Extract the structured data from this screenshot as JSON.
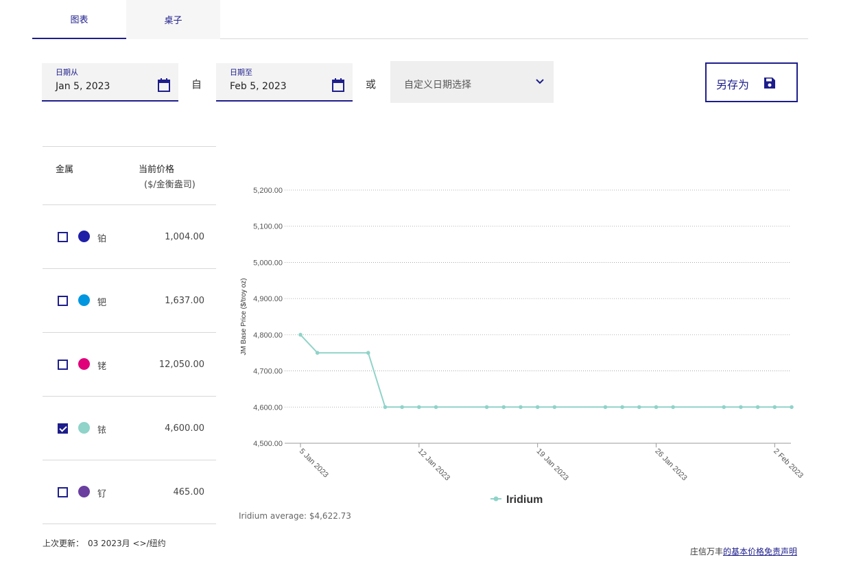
{
  "tabs": [
    {
      "label": "图表",
      "active": true
    },
    {
      "label": "桌子",
      "active": false
    }
  ],
  "date_filter": {
    "from_label": "日期从",
    "from_value": "Jan 5, 2023",
    "connector_to": "自",
    "to_label": "日期至",
    "to_value": "Feb 5, 2023",
    "connector_or": "或",
    "range_select_value": "自定义日期选择"
  },
  "save_button": {
    "label": "另存为",
    "icon": "save-icon"
  },
  "metal_table": {
    "col_metal": "金属",
    "col_price": "当前价格",
    "col_price_unit": "($/金衡盎司)",
    "rows": [
      {
        "name": "铂",
        "price": "1,004.00",
        "color": "#1f1fa8",
        "checked": false
      },
      {
        "name": "钯",
        "price": "1,637.00",
        "color": "#0096e0",
        "checked": false
      },
      {
        "name": "铑",
        "price": "12,050.00",
        "color": "#e0007a",
        "checked": false
      },
      {
        "name": "铱",
        "price": "4,600.00",
        "color": "#8fd3c9",
        "checked": true
      },
      {
        "name": "钌",
        "price": "465.00",
        "color": "#6a3fa0",
        "checked": false
      }
    ]
  },
  "last_updated": {
    "label": "上次更新：",
    "value": "03 2023月 <>/纽约"
  },
  "chart_data": {
    "type": "line",
    "ylabel": "JM Base Price ($/troy oz)",
    "ylim": [
      4500,
      5200
    ],
    "yticks": [
      4500,
      4600,
      4700,
      4800,
      4900,
      5000,
      5100,
      5200
    ],
    "ytick_labels": [
      "4,500.00",
      "4,600.00",
      "4,700.00",
      "4,800.00",
      "4,900.00",
      "5,000.00",
      "5,100.00",
      "5,200.00"
    ],
    "xlim": [
      "2023-01-05",
      "2023-02-03"
    ],
    "xtick_labels": [
      "5 Jan 2023",
      "12 Jan 2023",
      "19 Jan 2023",
      "26 Jan 2023",
      "2 Feb 2023"
    ],
    "xtick_dates": [
      "2023-01-05",
      "2023-01-12",
      "2023-01-19",
      "2023-01-26",
      "2023-02-02"
    ],
    "grid": true,
    "legend": "bottom",
    "series": [
      {
        "name": "Iridium",
        "color": "#8fd3c9",
        "points": [
          {
            "x": "2023-01-05",
            "y": 4800
          },
          {
            "x": "2023-01-06",
            "y": 4750
          },
          {
            "x": "2023-01-09",
            "y": 4750
          },
          {
            "x": "2023-01-10",
            "y": 4600
          },
          {
            "x": "2023-01-11",
            "y": 4600
          },
          {
            "x": "2023-01-12",
            "y": 4600
          },
          {
            "x": "2023-01-13",
            "y": 4600
          },
          {
            "x": "2023-01-16",
            "y": 4600
          },
          {
            "x": "2023-01-17",
            "y": 4600
          },
          {
            "x": "2023-01-18",
            "y": 4600
          },
          {
            "x": "2023-01-19",
            "y": 4600
          },
          {
            "x": "2023-01-20",
            "y": 4600
          },
          {
            "x": "2023-01-23",
            "y": 4600
          },
          {
            "x": "2023-01-24",
            "y": 4600
          },
          {
            "x": "2023-01-25",
            "y": 4600
          },
          {
            "x": "2023-01-26",
            "y": 4600
          },
          {
            "x": "2023-01-27",
            "y": 4600
          },
          {
            "x": "2023-01-30",
            "y": 4600
          },
          {
            "x": "2023-01-31",
            "y": 4600
          },
          {
            "x": "2023-02-01",
            "y": 4600
          },
          {
            "x": "2023-02-02",
            "y": 4600
          },
          {
            "x": "2023-02-03",
            "y": 4600
          }
        ]
      }
    ],
    "average_text": "Iridium average: $4,622.73"
  },
  "disclaimer": {
    "prefix": "庄信万丰",
    "link": "的基本价格免责声明"
  }
}
